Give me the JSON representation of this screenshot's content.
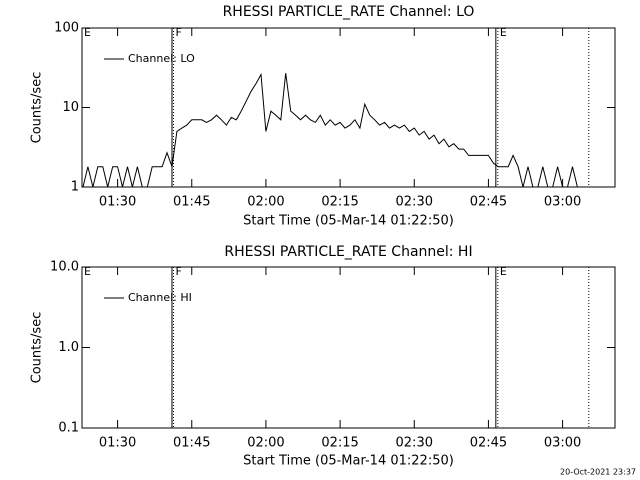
{
  "chart_data": [
    {
      "type": "line",
      "title": "RHESSI PARTICLE_RATE Channel: LO",
      "ylabel": "Counts/sec",
      "xlabel": "Start Time (05-Mar-14 01:22:50)",
      "ylog": true,
      "ylim": [
        1,
        100
      ],
      "yticks": [
        1,
        10,
        100
      ],
      "xlim": [
        82.8,
        190.6
      ],
      "xticks": [
        {
          "value": 90,
          "label": "01:30"
        },
        {
          "value": 105,
          "label": "01:45"
        },
        {
          "value": 120,
          "label": "02:00"
        },
        {
          "value": 135,
          "label": "02:15"
        },
        {
          "value": 150,
          "label": "02:30"
        },
        {
          "value": 165,
          "label": "02:45"
        },
        {
          "value": 180,
          "label": "03:00"
        }
      ],
      "legend": "upper left",
      "annotations": [
        {
          "text": "E",
          "x": 82.8
        },
        {
          "text": "F",
          "x": 101.3
        },
        {
          "text": "E",
          "x": 166.9
        }
      ],
      "vlines": [
        {
          "x": 101.0,
          "style": "solid"
        },
        {
          "x": 101.3,
          "style": "dotted"
        },
        {
          "x": 166.5,
          "style": "solid"
        },
        {
          "x": 166.9,
          "style": "dotted"
        },
        {
          "x": 185.3,
          "style": "dotted"
        }
      ],
      "x": [
        83,
        84,
        85,
        86,
        87,
        88,
        89,
        90,
        91,
        92,
        93,
        94,
        95,
        96,
        97,
        98,
        99,
        100,
        101,
        102,
        103,
        104,
        105,
        106,
        107,
        108,
        109,
        110,
        111,
        112,
        113,
        114,
        115,
        116,
        117,
        118,
        119,
        120,
        121,
        122,
        123,
        124,
        125,
        126,
        127,
        128,
        129,
        130,
        131,
        132,
        133,
        134,
        135,
        136,
        137,
        138,
        139,
        140,
        141,
        142,
        143,
        144,
        145,
        146,
        147,
        148,
        149,
        150,
        151,
        152,
        153,
        154,
        155,
        156,
        157,
        158,
        159,
        160,
        161,
        162,
        163,
        164,
        165,
        166,
        167,
        168,
        169,
        170,
        171,
        172,
        173,
        174,
        175,
        176,
        177,
        178,
        179,
        180,
        181,
        182,
        183,
        184
      ],
      "series": [
        {
          "name": "Channel: LO",
          "color": "#000000",
          "values": [
            1,
            1.8,
            1,
            1.8,
            1.8,
            1,
            1.8,
            1.8,
            1,
            1.8,
            1,
            1.8,
            1,
            1,
            1.8,
            1.8,
            1.8,
            2.7,
            1.8,
            5,
            5.5,
            6,
            7,
            7,
            7,
            6.5,
            7,
            8,
            7,
            6,
            7.5,
            7,
            9,
            12,
            16,
            20,
            26,
            5,
            9,
            8,
            7,
            27,
            9,
            8,
            7,
            8,
            7,
            6.5,
            8,
            6,
            7,
            6,
            6.5,
            5.5,
            6,
            7,
            5.5,
            11,
            8,
            7,
            6,
            6.5,
            5.5,
            6,
            5.5,
            6,
            5,
            5.5,
            4.5,
            5,
            4,
            4.5,
            3.5,
            4,
            3.2,
            3.5,
            3,
            3,
            2.5,
            2.5,
            2.5,
            2.5,
            2.5,
            2,
            1.8,
            1.8,
            1.8,
            2.5,
            1.8,
            1,
            1.8,
            1,
            1,
            1.8,
            1,
            1,
            1.8,
            1,
            1,
            1.8,
            1,
            1
          ]
        }
      ]
    },
    {
      "type": "line",
      "title": "RHESSI PARTICLE_RATE Channel: HI",
      "ylabel": "Counts/sec",
      "xlabel": "Start Time (05-Mar-14 01:22:50)",
      "ylog": true,
      "ylim": [
        0.1,
        10
      ],
      "yticks": [
        0.1,
        {
          "value": 1,
          "label": "1.0"
        },
        {
          "value": 10,
          "label": "10.0"
        }
      ],
      "xlim": [
        82.8,
        190.6
      ],
      "xticks": [
        {
          "value": 90,
          "label": "01:30"
        },
        {
          "value": 105,
          "label": "01:45"
        },
        {
          "value": 120,
          "label": "02:00"
        },
        {
          "value": 135,
          "label": "02:15"
        },
        {
          "value": 150,
          "label": "02:30"
        },
        {
          "value": 165,
          "label": "02:45"
        },
        {
          "value": 180,
          "label": "03:00"
        }
      ],
      "legend": "upper left",
      "annotations": [
        {
          "text": "E",
          "x": 82.8
        },
        {
          "text": "F",
          "x": 101.3
        },
        {
          "text": "E",
          "x": 166.9
        }
      ],
      "vlines": [
        {
          "x": 101.0,
          "style": "solid"
        },
        {
          "x": 101.3,
          "style": "dotted"
        },
        {
          "x": 166.5,
          "style": "solid"
        },
        {
          "x": 166.9,
          "style": "dotted"
        },
        {
          "x": 185.3,
          "style": "dotted"
        }
      ],
      "x": [],
      "series": [
        {
          "name": "Channel: HI",
          "color": "#000000",
          "values": []
        }
      ]
    }
  ],
  "footer": "20-Oct-2021 23:37"
}
